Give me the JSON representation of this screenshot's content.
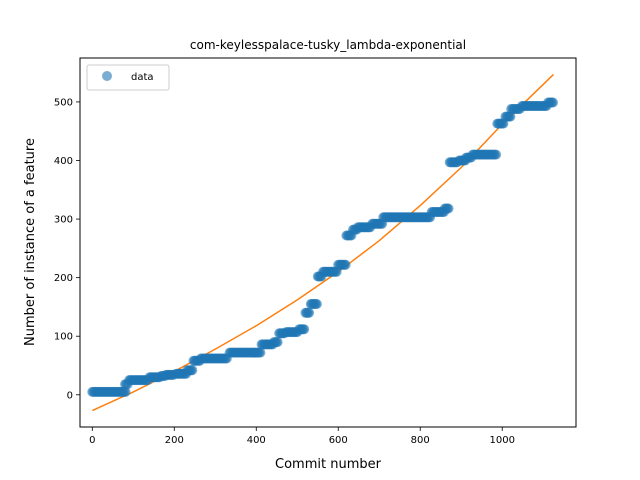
{
  "chart_data": {
    "type": "scatter",
    "title": "com-keylesspalace-tusky_lambda-exponential",
    "xlabel": "Commit number",
    "ylabel": "Number of instance of a feature",
    "xlim": [
      -30,
      1180
    ],
    "ylim": [
      -55,
      575
    ],
    "xticks": [
      0,
      200,
      400,
      600,
      800,
      1000
    ],
    "yticks": [
      0,
      100,
      200,
      300,
      400,
      500
    ],
    "legend": {
      "position": "top-left",
      "entries": [
        "data"
      ]
    },
    "colors": {
      "data": "#1f77b4",
      "fit": "#ff7f0e"
    },
    "series": [
      {
        "name": "data",
        "kind": "scatter",
        "segments": [
          [
            0,
            82,
            5
          ],
          [
            80,
            88,
            18
          ],
          [
            90,
            135,
            25
          ],
          [
            140,
            165,
            30
          ],
          [
            168,
            178,
            32
          ],
          [
            180,
            200,
            34
          ],
          [
            205,
            230,
            36
          ],
          [
            232,
            245,
            42
          ],
          [
            247,
            262,
            58
          ],
          [
            265,
            330,
            62
          ],
          [
            335,
            410,
            72
          ],
          [
            413,
            440,
            86
          ],
          [
            443,
            452,
            90
          ],
          [
            456,
            470,
            105
          ],
          [
            473,
            500,
            107
          ],
          [
            505,
            518,
            112
          ],
          [
            520,
            530,
            140
          ],
          [
            533,
            548,
            155
          ],
          [
            550,
            560,
            202
          ],
          [
            563,
            598,
            210
          ],
          [
            600,
            618,
            222
          ],
          [
            620,
            633,
            272
          ],
          [
            636,
            645,
            282
          ],
          [
            648,
            680,
            286
          ],
          [
            683,
            708,
            292
          ],
          [
            710,
            825,
            303
          ],
          [
            828,
            858,
            312
          ],
          [
            860,
            870,
            318
          ],
          [
            872,
            892,
            397
          ],
          [
            895,
            910,
            400
          ],
          [
            912,
            925,
            405
          ],
          [
            928,
            985,
            410
          ],
          [
            988,
            1005,
            463
          ],
          [
            1008,
            1020,
            475
          ],
          [
            1022,
            1045,
            488
          ],
          [
            1048,
            1110,
            493
          ],
          [
            1112,
            1125,
            499
          ]
        ]
      },
      {
        "name": "",
        "kind": "line",
        "function": "exponential",
        "x": [
          0,
          100,
          200,
          300,
          400,
          500,
          600,
          700,
          800,
          900,
          1000,
          1125
        ],
        "y": [
          -27,
          5,
          40,
          78,
          118,
          162,
          210,
          263,
          323,
          388,
          462,
          547
        ]
      }
    ]
  }
}
